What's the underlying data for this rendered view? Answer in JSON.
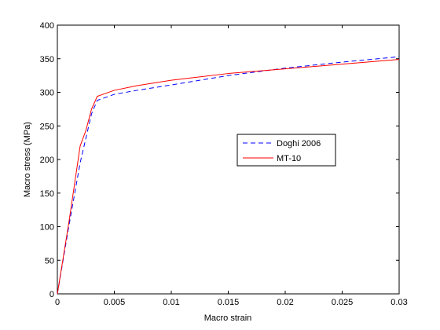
{
  "chart_data": {
    "type": "line",
    "title": "",
    "xlabel": "Macro strain",
    "ylabel": "Macro stress (MPa)",
    "xlim": [
      0,
      0.03
    ],
    "ylim": [
      0,
      400
    ],
    "x_ticks": [
      0,
      0.005,
      0.01,
      0.015,
      0.02,
      0.025,
      0.03
    ],
    "x_tick_labels": [
      "0",
      "0.005",
      "0.01",
      "0.015",
      "0.02",
      "0.025",
      "0.03"
    ],
    "y_ticks": [
      0,
      50,
      100,
      150,
      200,
      250,
      300,
      350,
      400
    ],
    "y_tick_labels": [
      "0",
      "50",
      "100",
      "150",
      "200",
      "250",
      "300",
      "350",
      "400"
    ],
    "grid": false,
    "legend_position": "center-right",
    "series": [
      {
        "name": "Doghi 2006",
        "color": "#0000ff",
        "style": "dashed",
        "x": [
          0,
          0.001,
          0.002,
          0.003,
          0.0035,
          0.004,
          0.005,
          0.007,
          0.01,
          0.015,
          0.02,
          0.025,
          0.03
        ],
        "y": [
          0,
          100,
          195,
          268,
          288,
          291,
          297,
          303,
          311,
          325,
          336,
          345,
          353
        ]
      },
      {
        "name": "MT-10",
        "color": "#ff0000",
        "style": "solid",
        "x": [
          0,
          0.001,
          0.002,
          0.0025,
          0.003,
          0.0035,
          0.004,
          0.005,
          0.007,
          0.01,
          0.015,
          0.02,
          0.025,
          0.03
        ],
        "y": [
          0,
          105,
          220,
          243,
          275,
          294,
          297,
          303,
          310,
          318,
          328,
          335,
          342,
          349
        ]
      }
    ]
  }
}
